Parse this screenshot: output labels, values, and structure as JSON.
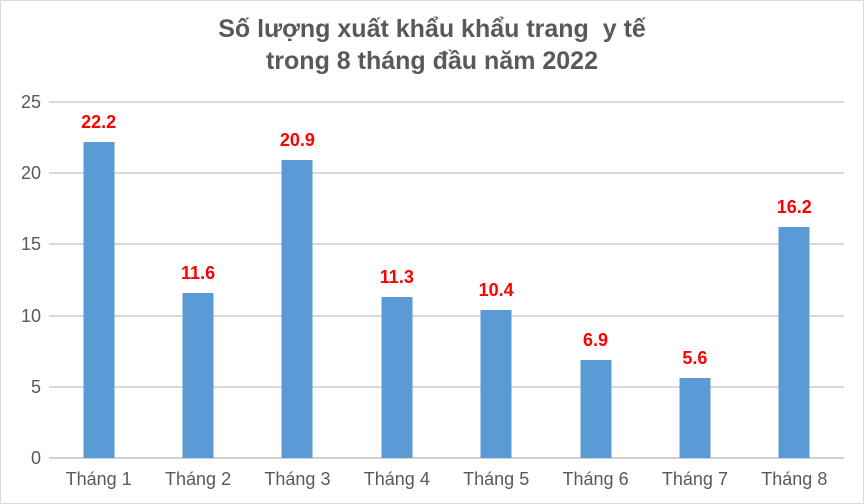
{
  "title": {
    "line1": "Số lượng xuất khẩu khẩu trang  y tế",
    "line2": "trong 8 tháng đầu năm 2022"
  },
  "chart_data": {
    "type": "bar",
    "title": "Số lượng xuất khẩu khẩu trang y tế trong 8 tháng đầu năm 2022",
    "categories": [
      "Tháng 1",
      "Tháng 2",
      "Tháng 3",
      "Tháng 4",
      "Tháng 5",
      "Tháng 6",
      "Tháng 7",
      "Tháng 8"
    ],
    "values": [
      22.2,
      11.6,
      20.9,
      11.3,
      10.4,
      6.9,
      5.6,
      16.2
    ],
    "data_labels": [
      "22.2",
      "11.6",
      "20.9",
      "11.3",
      "10.4",
      "6.9",
      "5.6",
      "16.2"
    ],
    "xlabel": "",
    "ylabel": "",
    "ylim": [
      0,
      25
    ],
    "yticks": [
      0,
      5,
      10,
      15,
      20,
      25
    ],
    "grid": true,
    "legend": "none",
    "colors": {
      "bar": "#5b9bd5",
      "data_label": "#ff0000",
      "axis_text": "#595959",
      "title_text": "#595959",
      "gridline": "#d9d9d9"
    }
  }
}
